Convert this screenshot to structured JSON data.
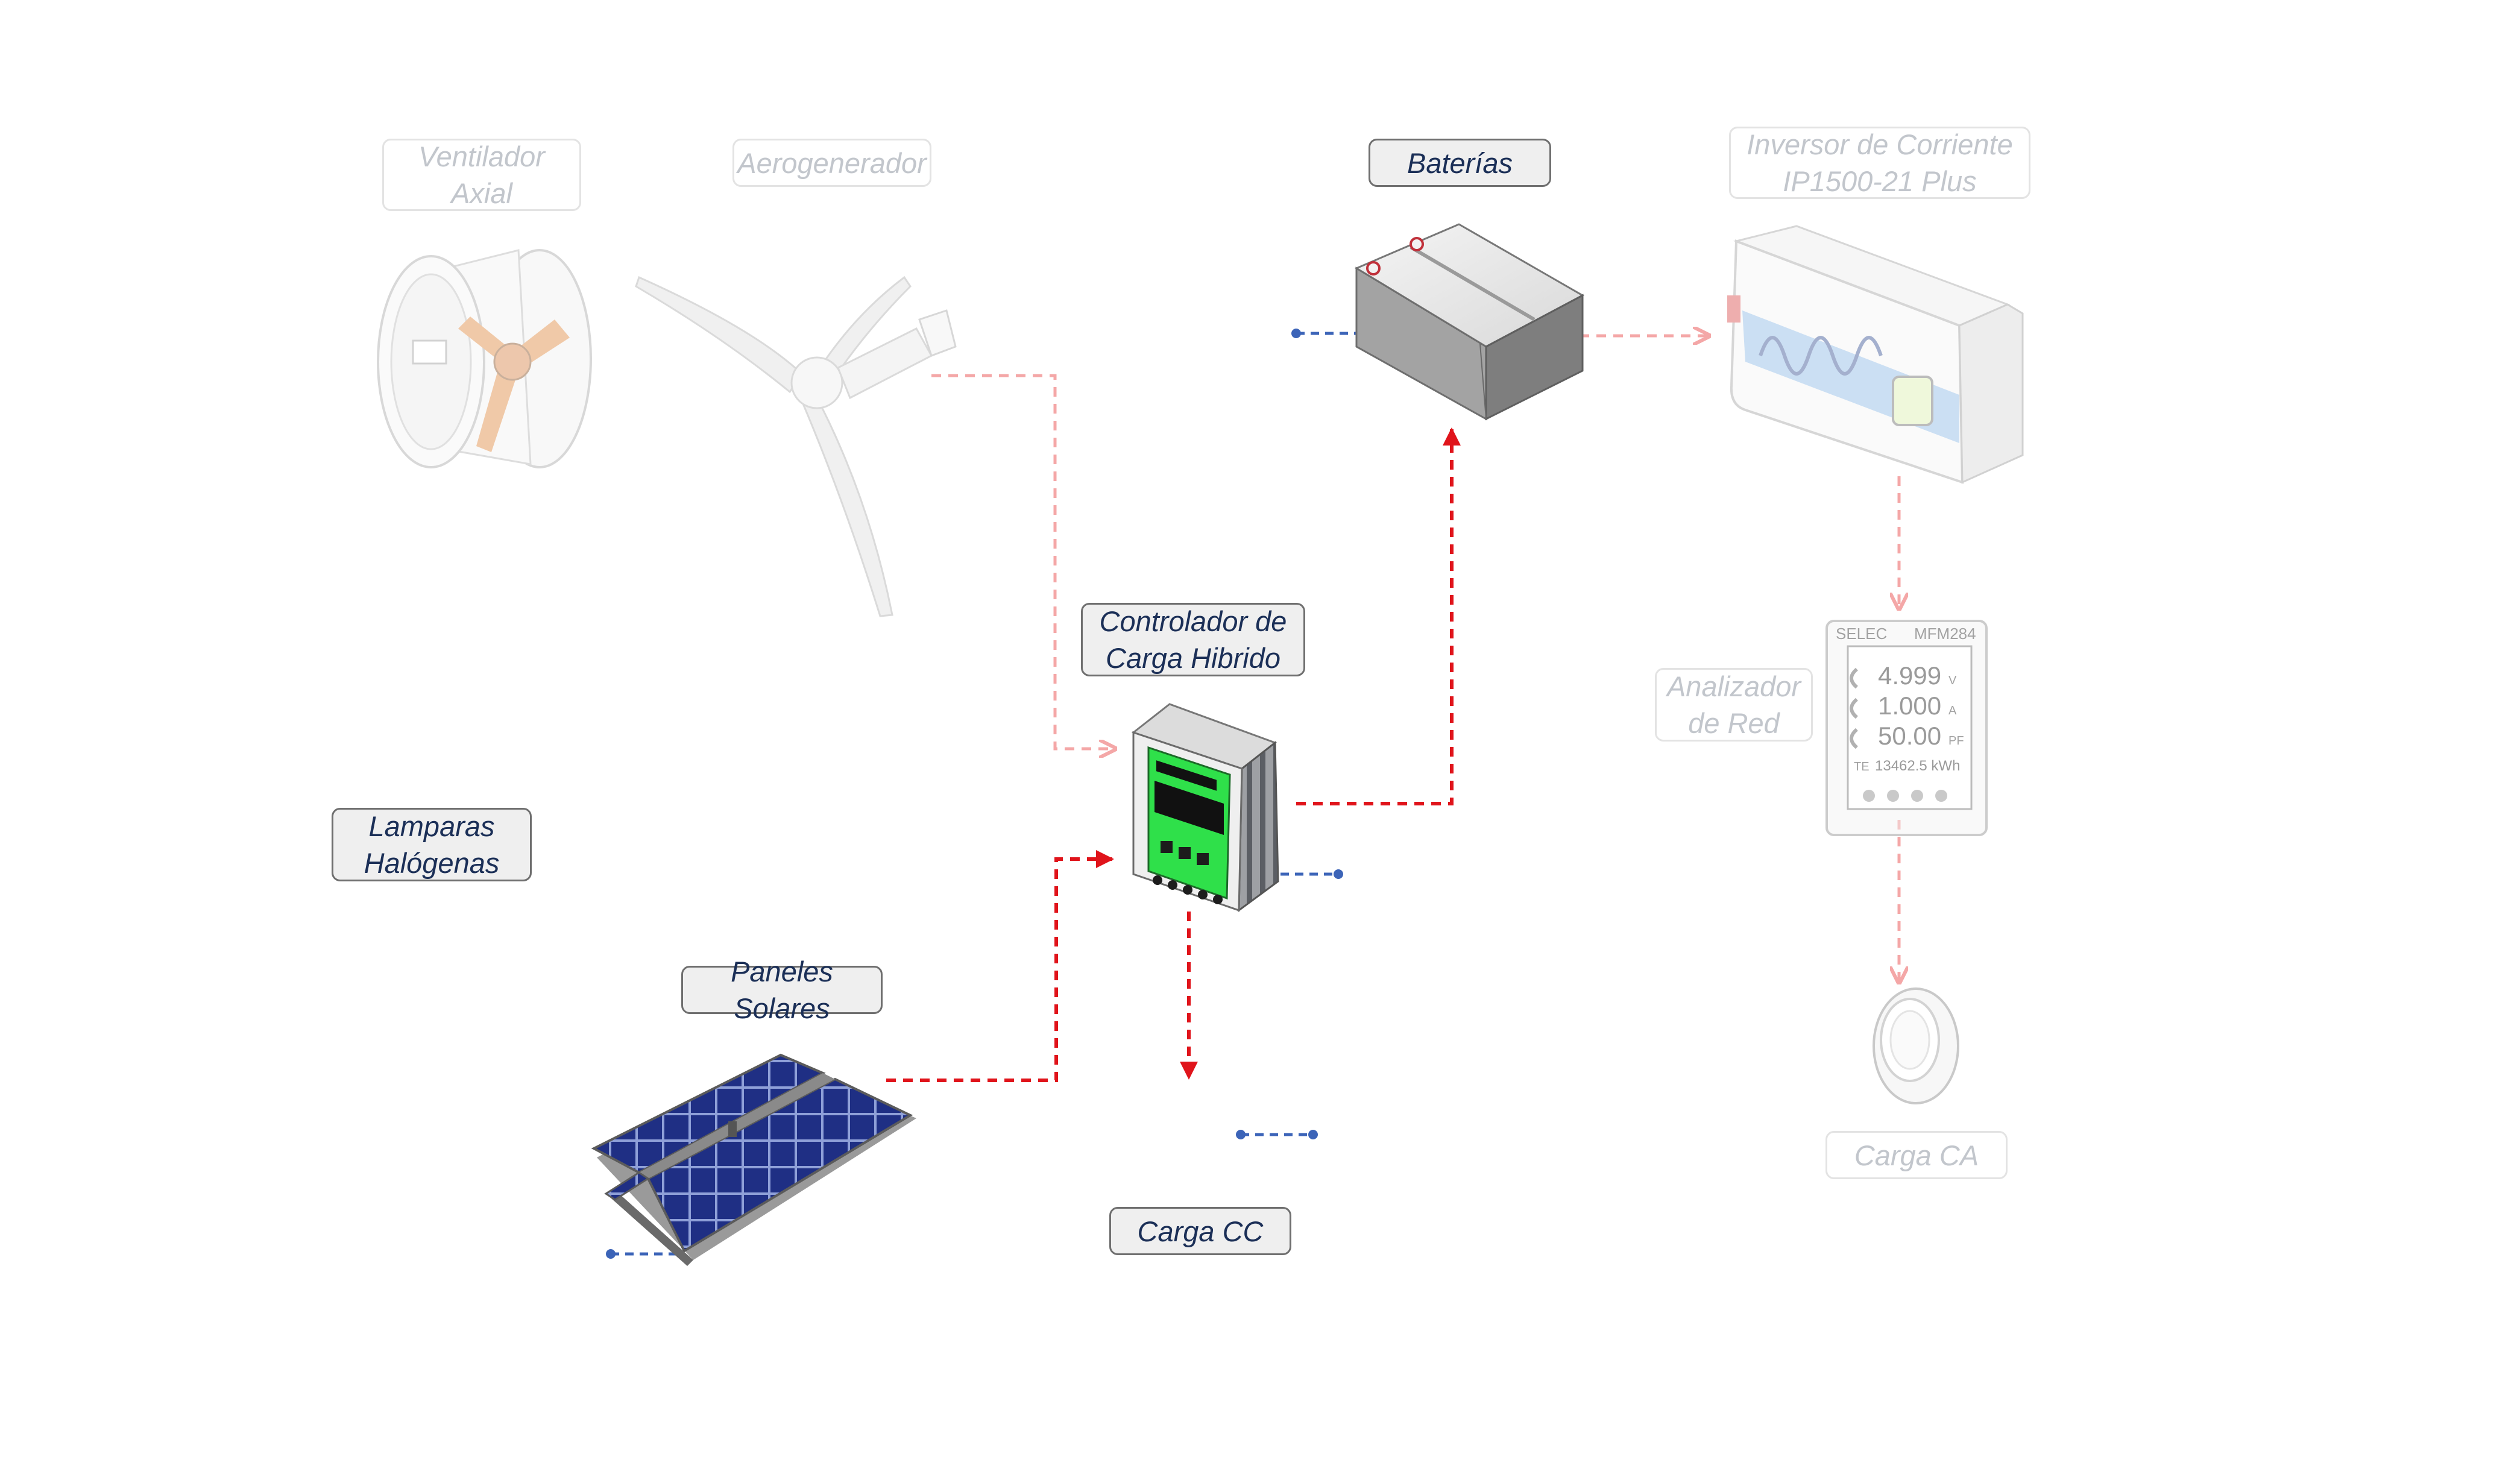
{
  "diagram": {
    "colors": {
      "active_flow": "#e0141b",
      "faded_flow": "#f4a7a7",
      "dc_lead": "#3c64b8",
      "active_label_text": "#1b2f57",
      "faded_label_text": "#c2c6cc",
      "controller_green": "#2fe04a",
      "solar_panel_blue": "#1f2f84"
    },
    "components": {
      "ventilador": {
        "line1": "Ventilador",
        "line2": "Axial",
        "state": "faded"
      },
      "aerogenerador": {
        "label": "Aerogenerador",
        "state": "faded"
      },
      "baterias": {
        "label": "Baterías",
        "state": "active"
      },
      "inversor": {
        "line1": "Inversor de Corriente",
        "line2": "IP1500-21 Plus",
        "state": "faded"
      },
      "controlador": {
        "line1": "Controlador de",
        "line2": "Carga Hibrido",
        "state": "active"
      },
      "analizador": {
        "line1": "Analizador",
        "line2": "de Red",
        "state": "faded"
      },
      "lamparas": {
        "line1": "Lamparas",
        "line2": "Halógenas",
        "state": "active"
      },
      "paneles": {
        "label": "Paneles Solares",
        "state": "active"
      },
      "carga_cc": {
        "label": "Carga CC",
        "state": "active"
      },
      "carga_ca": {
        "label": "Carga CA",
        "state": "faded"
      }
    },
    "meter_display": {
      "brand": "SELEC",
      "model": "MFM284",
      "reading1": "4.999",
      "unit1": "V",
      "reading2": "1.000",
      "unit2": "A",
      "reading3": "50.00",
      "unit3": "PF",
      "energy": "13462.5 kWh",
      "energy_prefix": "TE"
    }
  }
}
